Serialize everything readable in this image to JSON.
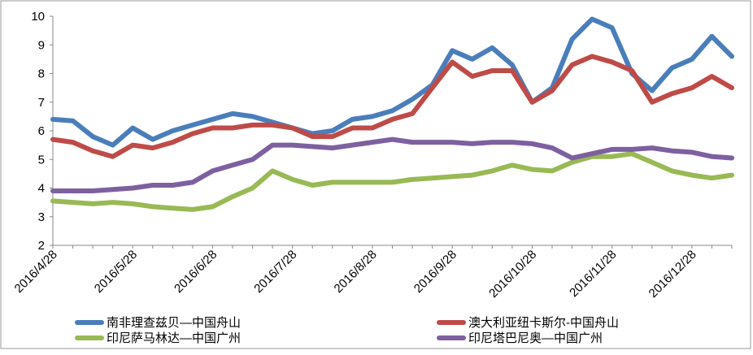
{
  "chart_data": {
    "type": "line",
    "categories": [
      "2016/4/28",
      null,
      null,
      null,
      "2016/5/28",
      null,
      null,
      null,
      "2016/6/28",
      null,
      null,
      null,
      "2016/7/28",
      null,
      null,
      null,
      "2016/8/28",
      null,
      null,
      null,
      "2016/9/28",
      null,
      null,
      null,
      "2016/10/28",
      null,
      null,
      null,
      "2016/11/28",
      null,
      null,
      null,
      "2016/12/28",
      null,
      null
    ],
    "series": [
      {
        "name": "南非理查兹贝—中国舟山",
        "color": "#4a7ebb",
        "values": [
          6.4,
          6.35,
          5.8,
          5.5,
          6.1,
          5.7,
          6.0,
          6.2,
          6.4,
          6.6,
          6.5,
          6.3,
          6.1,
          5.9,
          6.0,
          6.4,
          6.5,
          6.7,
          7.1,
          7.6,
          8.8,
          8.5,
          8.9,
          8.3,
          7.0,
          7.5,
          9.2,
          9.9,
          9.6,
          8.0,
          7.4,
          8.2,
          8.5,
          9.3,
          8.6
        ]
      },
      {
        "name": "澳大利亚纽卡斯尔-中国舟山",
        "color": "#be4b48",
        "values": [
          5.7,
          5.6,
          5.3,
          5.1,
          5.5,
          5.4,
          5.6,
          5.9,
          6.1,
          6.1,
          6.2,
          6.2,
          6.1,
          5.8,
          5.8,
          6.1,
          6.1,
          6.4,
          6.6,
          7.5,
          8.4,
          7.9,
          8.1,
          8.1,
          7.0,
          7.4,
          8.3,
          8.6,
          8.4,
          8.1,
          7.0,
          7.3,
          7.5,
          7.9,
          7.5
        ]
      },
      {
        "name": "印尼萨马林达—中国广州",
        "color": "#98b954",
        "values": [
          3.55,
          3.5,
          3.45,
          3.5,
          3.45,
          3.35,
          3.3,
          3.25,
          3.35,
          3.7,
          4.0,
          4.6,
          4.3,
          4.1,
          4.2,
          4.2,
          4.2,
          4.2,
          4.3,
          4.35,
          4.4,
          4.45,
          4.6,
          4.8,
          4.65,
          4.6,
          4.9,
          5.1,
          5.1,
          5.2,
          4.9,
          4.6,
          4.45,
          4.35,
          4.45
        ]
      },
      {
        "name": "印尼塔巴尼奥—中国广州",
        "color": "#7d60a0",
        "values": [
          3.9,
          3.9,
          3.9,
          3.95,
          4.0,
          4.1,
          4.1,
          4.2,
          4.6,
          4.8,
          5.0,
          5.5,
          5.5,
          5.45,
          5.4,
          5.5,
          5.6,
          5.7,
          5.6,
          5.6,
          5.6,
          5.55,
          5.6,
          5.6,
          5.55,
          5.4,
          5.05,
          5.2,
          5.35,
          5.35,
          5.4,
          5.3,
          5.25,
          5.1,
          5.05
        ]
      }
    ],
    "ylim": [
      2,
      10
    ],
    "yticks": [
      2,
      3,
      4,
      5,
      6,
      7,
      8,
      9,
      10
    ],
    "grid": false
  }
}
